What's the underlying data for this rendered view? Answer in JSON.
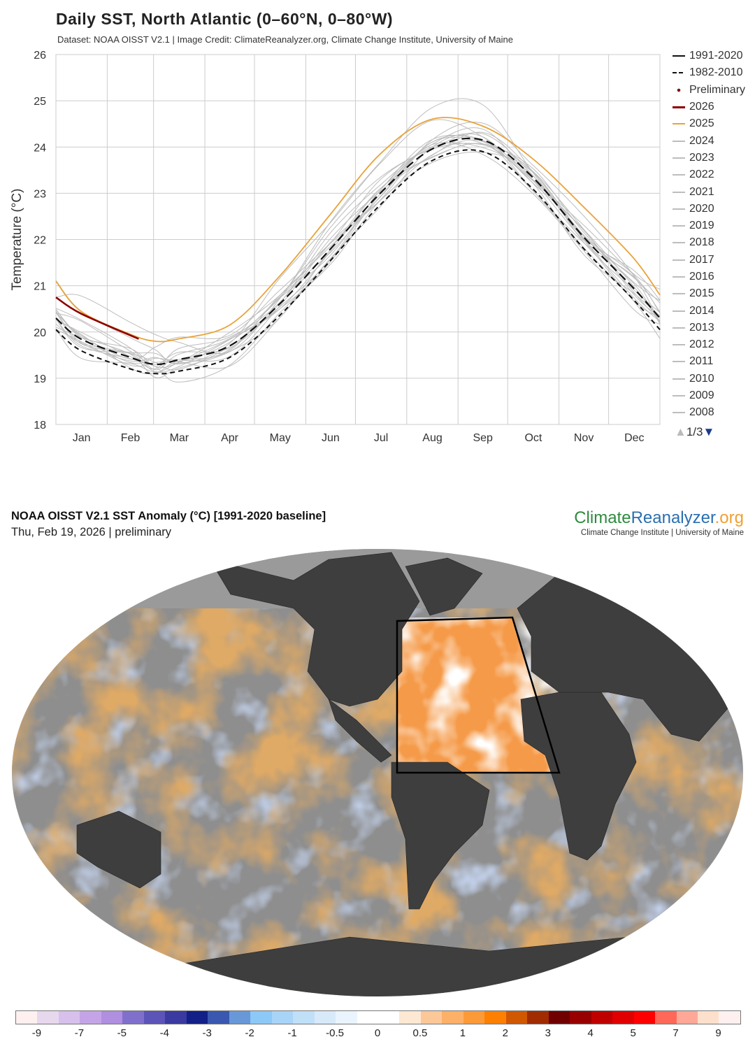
{
  "chart_data": {
    "type": "line",
    "title": "Daily SST, North Atlantic (0–60°N, 0–80°W)",
    "subtitle": "Dataset: NOAA OISST V2.1 | Image Credit: ClimateReanalyzer.org, Climate Change Institute, University of Maine",
    "ylabel": "Temperature (°C)",
    "xlabel": "",
    "ylim": [
      18,
      26
    ],
    "yticks": [
      "18",
      "19",
      "20",
      "21",
      "22",
      "23",
      "24",
      "25",
      "26"
    ],
    "xticks": [
      "Jan",
      "Feb",
      "Mar",
      "Apr",
      "May",
      "Jun",
      "Jul",
      "Aug",
      "Sep",
      "Oct",
      "Nov",
      "Dec"
    ],
    "grid": true,
    "legend_position": "right",
    "x_day_of_year": [
      0,
      15,
      45,
      60,
      74,
      105,
      135,
      166,
      196,
      227,
      258,
      288,
      319,
      349,
      365
    ],
    "series": [
      {
        "name": "1991-2020",
        "color": "#111111",
        "style": "solid-thick",
        "values": [
          20.3,
          19.85,
          19.45,
          19.3,
          19.4,
          19.7,
          20.6,
          21.8,
          23.0,
          23.95,
          24.15,
          23.35,
          22.05,
          20.95,
          20.3
        ]
      },
      {
        "name": "1982-2010",
        "color": "#111111",
        "style": "dashed",
        "values": [
          20.05,
          19.6,
          19.2,
          19.1,
          19.15,
          19.45,
          20.35,
          21.55,
          22.75,
          23.7,
          23.9,
          23.1,
          21.8,
          20.7,
          20.05
        ]
      },
      {
        "name": "2026",
        "color": "#8b0000",
        "style": "solid-thick",
        "values": [
          20.75,
          20.4,
          19.85
        ]
      },
      {
        "name": "2025",
        "color": "#e8a33a",
        "style": "solid",
        "values": [
          21.1,
          20.45,
          19.95,
          19.8,
          19.85,
          20.15,
          21.2,
          22.55,
          23.85,
          24.6,
          24.45,
          23.75,
          22.7,
          21.6,
          20.8
        ]
      }
    ],
    "grey_years": [
      {
        "name": "2024",
        "offset": 0.75
      },
      {
        "name": "2023",
        "offset": 0.6
      },
      {
        "name": "2022",
        "offset": 0.2
      },
      {
        "name": "2021",
        "offset": 0.15
      },
      {
        "name": "2020",
        "offset": 0.35
      },
      {
        "name": "2019",
        "offset": 0.1
      },
      {
        "name": "2018",
        "offset": -0.05
      },
      {
        "name": "2017",
        "offset": 0.2
      },
      {
        "name": "2016",
        "offset": 0.05
      },
      {
        "name": "2015",
        "offset": -0.1
      },
      {
        "name": "2014",
        "offset": -0.2
      },
      {
        "name": "2013",
        "offset": -0.15
      },
      {
        "name": "2012",
        "offset": 0.0
      },
      {
        "name": "2011",
        "offset": -0.25
      },
      {
        "name": "2010",
        "offset": 0.3
      },
      {
        "name": "2009",
        "offset": -0.3
      },
      {
        "name": "2008",
        "offset": -0.35
      }
    ],
    "legend_extra": "Preliminary",
    "pager": "1/3"
  },
  "map": {
    "title": "NOAA OISST V2.1 SST Anomaly (°C) [1991-2020 baseline]",
    "date": "Thu, Feb 19, 2026 | preliminary",
    "logo": {
      "a": "Climate",
      "b": "Reanalyzer",
      ".org": ".org",
      "c": ".org",
      "sub": "Climate Change Institute | University of Maine"
    },
    "colorbar_labels": [
      "-9",
      "-7",
      "-5",
      "-4",
      "-3",
      "-2",
      "-1",
      "-0.5",
      "0",
      "0.5",
      "1",
      "2",
      "3",
      "4",
      "5",
      "7",
      "9"
    ],
    "colorbar_colors": [
      "#fff0f0",
      "#e8d8ee",
      "#d8c0ec",
      "#c4a4e6",
      "#b08ee0",
      "#8070cc",
      "#5c54b8",
      "#3a3aa0",
      "#122088",
      "#3a58b0",
      "#6898d8",
      "#8cc8f8",
      "#a8d4f8",
      "#c0e0f8",
      "#d8eafa",
      "#eaf4fe",
      "#ffffff",
      "#ffffff",
      "#fde8d4",
      "#fdc898",
      "#fdb068",
      "#fd9a38",
      "#fd8000",
      "#d05800",
      "#a02c00",
      "#700000",
      "#980000",
      "#c00000",
      "#e00000",
      "#ff0000",
      "#ff6858",
      "#ffa898",
      "#fde0cc",
      "#fff0f0"
    ]
  }
}
